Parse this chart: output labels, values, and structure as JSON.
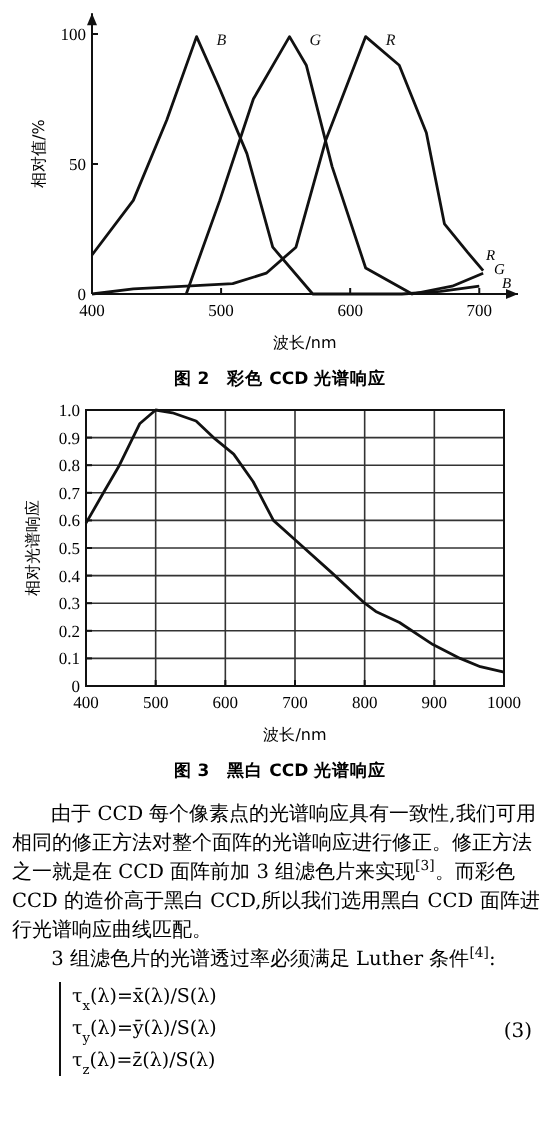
{
  "chart_data": [
    {
      "type": "line",
      "title": "图 2　彩色 CCD 光谱响应",
      "xlabel": "波长/nm",
      "ylabel": "相对值/%",
      "xlim": [
        400,
        730
      ],
      "xticks": [
        400,
        500,
        600,
        700
      ],
      "ylim": [
        0,
        108
      ],
      "yticks": [
        0,
        50,
        100
      ],
      "grid": false,
      "annotations": [
        "R",
        "G",
        "B"
      ],
      "legend": false,
      "line_style": "solid",
      "marker": "none",
      "series": [
        {
          "name": "B",
          "color": "#111111",
          "x": [
            400,
            432,
            458,
            481,
            498,
            520,
            540,
            571,
            600,
            640,
            670,
            700
          ],
          "values": [
            15,
            36,
            67,
            99,
            80,
            54,
            18,
            0,
            0,
            0,
            1,
            3
          ]
        },
        {
          "name": "G",
          "color": "#111111",
          "x": [
            473,
            499,
            525,
            553,
            566,
            586,
            612,
            648,
            679,
            703
          ],
          "values": [
            0,
            36,
            75,
            99,
            88,
            49,
            10,
            0,
            3,
            8
          ]
        },
        {
          "name": "R",
          "color": "#111111",
          "x": [
            400,
            432,
            473,
            509,
            535,
            558,
            581,
            612,
            638,
            659,
            673,
            691,
            703
          ],
          "values": [
            0,
            2,
            3,
            4,
            8,
            18,
            59,
            99,
            88,
            62,
            27,
            16,
            9
          ]
        }
      ]
    },
    {
      "type": "line",
      "title": "图 3　黑白 CCD 光谱响应",
      "xlabel": "波长/nm",
      "ylabel": "相对光谱响应",
      "xlim": [
        400,
        1000
      ],
      "xticks": [
        400,
        500,
        600,
        700,
        800,
        900,
        1000
      ],
      "ylim": [
        0,
        1
      ],
      "yticks": [
        0,
        0.1,
        0.2,
        0.3,
        0.4,
        0.5,
        0.6,
        0.7,
        0.8,
        0.9,
        {
          "value": 1,
          "label": "1.0"
        }
      ],
      "grid": true,
      "legend": false,
      "line_style": "solid",
      "marker": "none",
      "series": [
        {
          "color": "#111111",
          "x": [
            400,
            425,
            448,
            477,
            500,
            524,
            558,
            583,
            612,
            640,
            669,
            700,
            753,
            800,
            816,
            850,
            898,
            937,
            966,
            1000
          ],
          "values": [
            0.59,
            0.7,
            0.8,
            0.95,
            1.0,
            0.99,
            0.96,
            0.9,
            0.84,
            0.74,
            0.6,
            0.53,
            0.41,
            0.3,
            0.27,
            0.23,
            0.15,
            0.1,
            0.07,
            0.05
          ]
        }
      ],
      "annotations": [
        "由于 CCD 每个像素点的光谱响应具有一致性,我们可用相同的修正方法对整个面阵的光谱响应进行修正。修正方法之一就是在 CCD 面阵前加 3 组滤色片来实现$^{[3]}$。而彩色 CCD 的造价高于黑白 CCD,所以我们选用黑白 CCD 面阵进行光谱响应曲线匹配。",
        "3 组滤色片的光谱透过率必须满足 Luther 条件$^{[4]}$:",
        "τ$_{x}$(λ)=x̄(λ)/S(λ)",
        "τ$_{y}$(λ)=ȳ(λ)/S(λ)",
        "τ$_{z}$(λ)=z̄(λ)/S(λ)",
        "(3)"
      ]
    }
  ]
}
